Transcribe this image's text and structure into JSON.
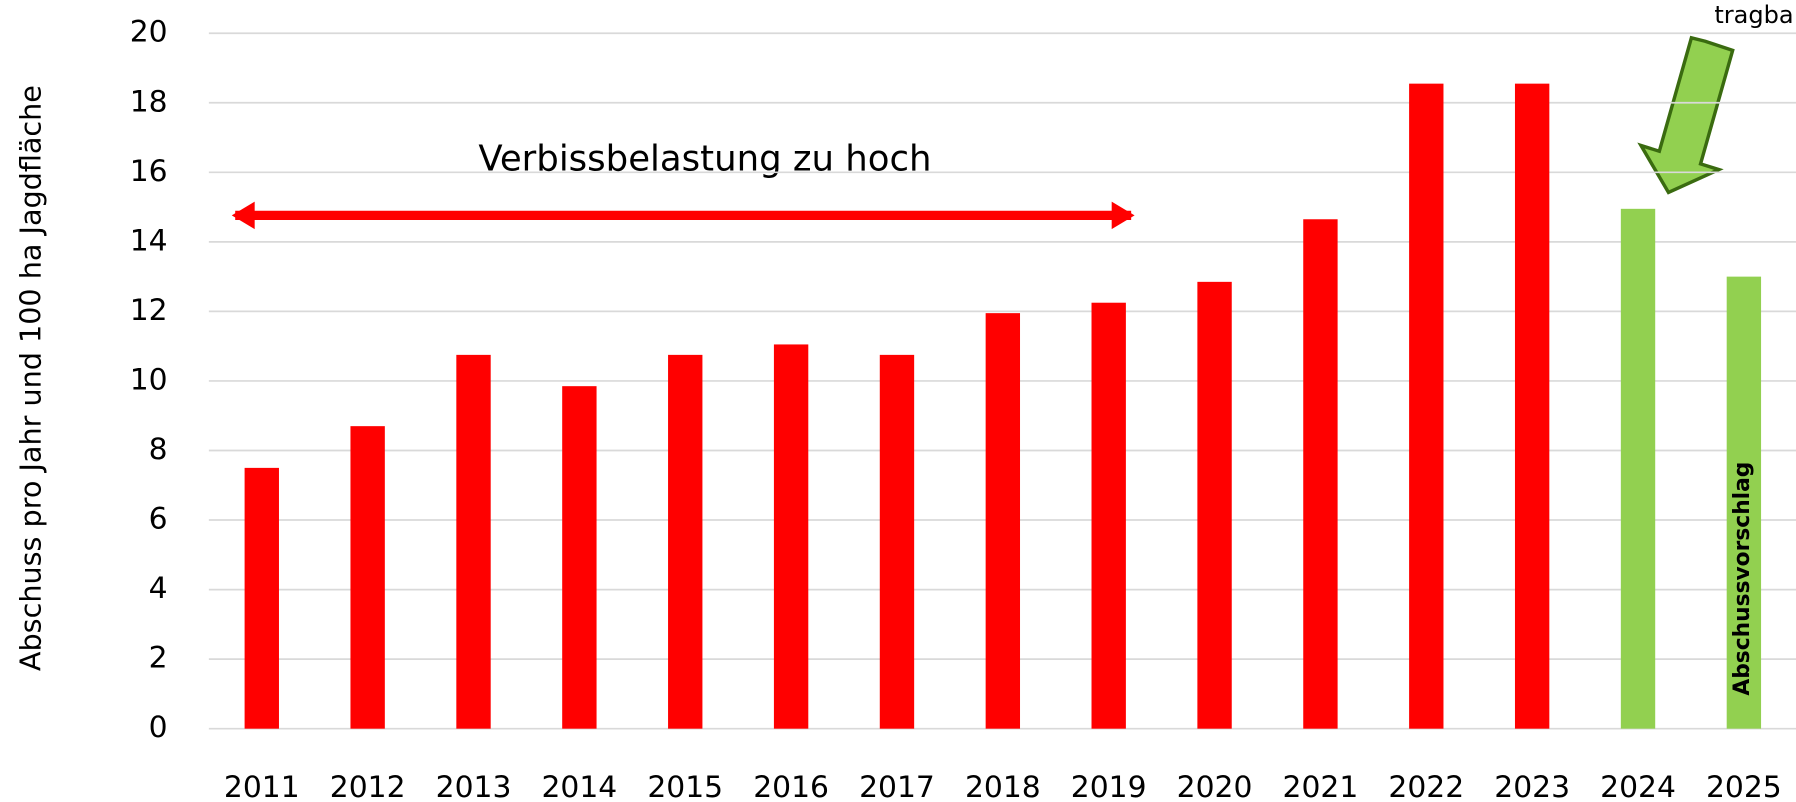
{
  "chart_data": {
    "type": "bar",
    "y_axis_label": "Abschuss pro Jahr und 100 ha Jagdfläche",
    "categories": [
      "2011",
      "2012",
      "2013",
      "2014",
      "2015",
      "2016",
      "2017",
      "2018",
      "2019",
      "2020",
      "2021",
      "2022",
      "2023",
      "2024",
      "2025"
    ],
    "values": [
      7.5,
      8.7,
      10.75,
      9.85,
      10.75,
      11.05,
      10.75,
      11.95,
      12.25,
      12.85,
      14.65,
      18.55,
      18.55,
      14.95,
      13.0
    ],
    "colors": [
      "#ff0000",
      "#ff0000",
      "#ff0000",
      "#ff0000",
      "#ff0000",
      "#ff0000",
      "#ff0000",
      "#ff0000",
      "#ff0000",
      "#ff0000",
      "#ff0000",
      "#ff0000",
      "#ff0000",
      "#92d050",
      "#92d050"
    ],
    "ylim": [
      0,
      20
    ],
    "yticks": [
      0,
      2,
      4,
      6,
      8,
      10,
      12,
      14,
      16,
      18,
      20
    ],
    "grid": true,
    "annotations": [
      "Verbissbelastung zu hoch",
      "tragba",
      "Abschussvorschlag"
    ]
  }
}
